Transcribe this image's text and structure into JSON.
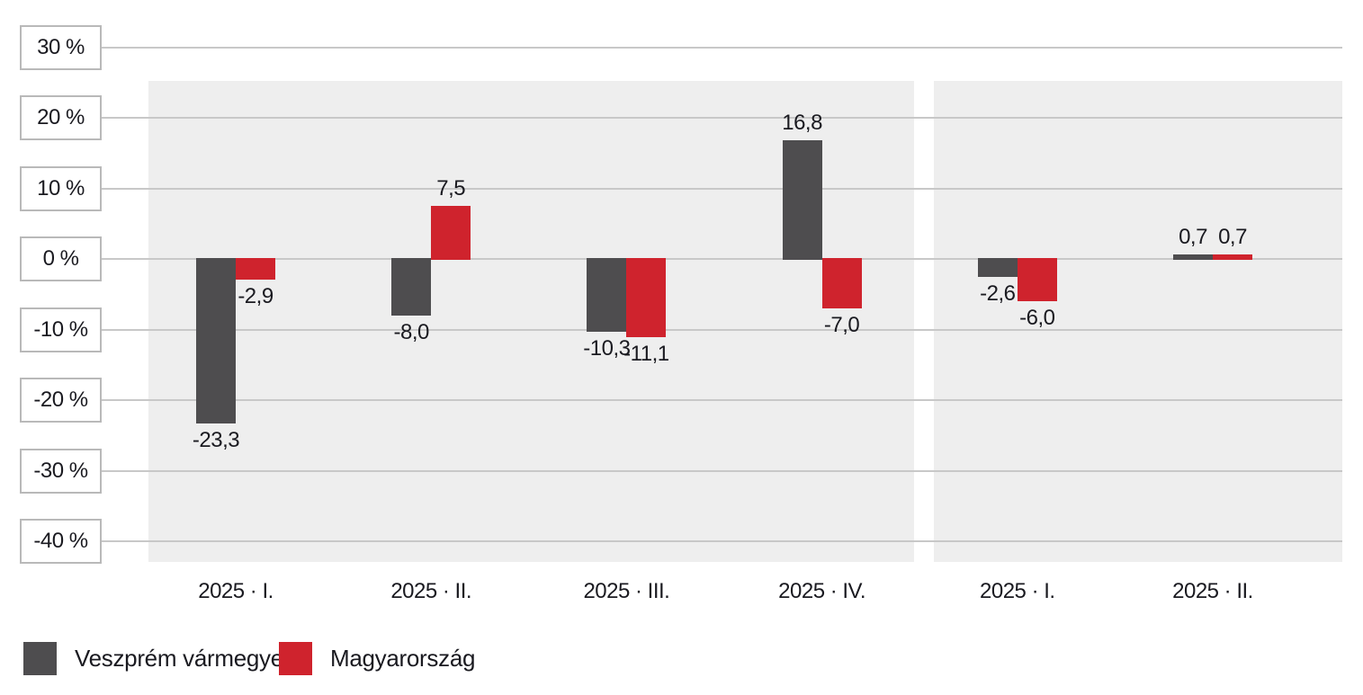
{
  "colors": {
    "veszprem": "#4e4d4f",
    "magyarorszag": "#cf232d",
    "grid": "#c8c8c8",
    "panel_bg": "#eeeeee",
    "tick_box_border": "#b9b9b9",
    "text": "#1a1a20"
  },
  "y_axis": {
    "ticks": [
      {
        "label": "30 %",
        "value": 30
      },
      {
        "label": "20 %",
        "value": 20
      },
      {
        "label": "10 %",
        "value": 10
      },
      {
        "label": "0 %",
        "value": 0
      },
      {
        "label": "-10 %",
        "value": -10
      },
      {
        "label": "-20 %",
        "value": -20
      },
      {
        "label": "-30 %",
        "value": -30
      },
      {
        "label": "-40 %",
        "value": -40
      }
    ]
  },
  "chart_data": {
    "type": "bar",
    "title": "",
    "xlabel": "",
    "ylabel": "%",
    "ylim": [
      -40,
      30
    ],
    "grid": true,
    "legend_position": "bottom-left",
    "categories": [
      "2025 · I.",
      "2025 · II.",
      "2025 · III.",
      "2025 · IV.",
      "2025 · I.",
      "2025 · II."
    ],
    "panel_of_group": [
      0,
      0,
      0,
      0,
      1,
      1
    ],
    "series": [
      {
        "name": "Veszprém vármegye",
        "color": "#4e4d4f",
        "values": [
          -23.3,
          -8.0,
          -10.3,
          16.8,
          -2.6,
          0.7
        ],
        "labels": [
          "-23,3",
          "-8,0",
          "-10,3",
          "16,8",
          "-2,6",
          "0,7"
        ]
      },
      {
        "name": "Magyarország",
        "color": "#cf232d",
        "values": [
          -2.9,
          7.5,
          -11.1,
          -7.0,
          -6.0,
          0.7
        ],
        "labels": [
          "-2,9",
          "7,5",
          "-11,1",
          "-7,0",
          "-6,0",
          "0,7"
        ]
      }
    ]
  },
  "legend": {
    "items": [
      {
        "label": "Veszprém vármegye",
        "color": "#4e4d4f"
      },
      {
        "label": "Magyarország",
        "color": "#cf232d"
      }
    ]
  }
}
